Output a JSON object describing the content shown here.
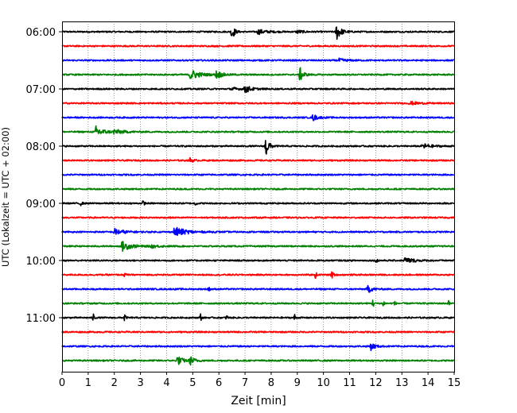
{
  "chart_data": {
    "type": "line",
    "title": "",
    "xlabel": "Zeit  [min]",
    "ylabel": "UTC (Lokalzeit = UTC + 02:00)",
    "xlim": [
      0,
      15
    ],
    "x_ticks": [
      0,
      1,
      2,
      3,
      4,
      5,
      6,
      7,
      8,
      9,
      10,
      11,
      12,
      13,
      14,
      15
    ],
    "x_tick_labels": [
      "0",
      "1",
      "2",
      "3",
      "4",
      "5",
      "6",
      "7",
      "8",
      "9",
      "10",
      "11",
      "12",
      "13",
      "14",
      "15"
    ],
    "y_tick_labels": [
      "06:00",
      "07:00",
      "08:00",
      "09:00",
      "10:00",
      "11:00"
    ],
    "vertical_grid": true,
    "grid_style": "dotted",
    "trace_interval_min": 15,
    "color_cycle": [
      "#000000",
      "#ff0000",
      "#0000ff",
      "#008000"
    ],
    "traces": [
      {
        "start": "06:00",
        "color": "#000000",
        "events": [
          [
            6.5,
            12,
            0.08
          ],
          [
            7.5,
            3,
            0.3
          ],
          [
            9,
            2,
            0.2
          ],
          [
            10.5,
            11,
            0.15
          ]
        ]
      },
      {
        "start": "06:15",
        "color": "#ff0000",
        "events": []
      },
      {
        "start": "06:30",
        "color": "#0000ff",
        "events": [
          [
            10.6,
            2,
            0.25
          ]
        ]
      },
      {
        "start": "06:45",
        "color": "#008000",
        "events": [
          [
            4.9,
            7,
            0.3
          ],
          [
            5.9,
            5,
            0.2
          ],
          [
            9.1,
            9,
            0.12
          ]
        ]
      },
      {
        "start": "07:00",
        "color": "#000000",
        "events": [
          [
            7.0,
            5,
            0.2
          ],
          [
            6.5,
            2,
            0.2
          ]
        ]
      },
      {
        "start": "07:15",
        "color": "#ff0000",
        "events": [
          [
            13.3,
            2,
            0.3
          ]
        ]
      },
      {
        "start": "07:30",
        "color": "#0000ff",
        "events": [
          [
            9.6,
            4,
            0.15
          ]
        ]
      },
      {
        "start": "07:45",
        "color": "#008000",
        "events": [
          [
            1.3,
            7,
            0.25
          ],
          [
            2.0,
            3,
            0.3
          ]
        ]
      },
      {
        "start": "08:00",
        "color": "#000000",
        "events": [
          [
            7.8,
            14,
            0.1
          ],
          [
            13.8,
            3,
            0.3
          ]
        ]
      },
      {
        "start": "08:15",
        "color": "#ff0000",
        "events": [
          [
            4.9,
            3,
            0.1
          ]
        ]
      },
      {
        "start": "08:30",
        "color": "#0000ff",
        "events": []
      },
      {
        "start": "08:45",
        "color": "#008000",
        "events": []
      },
      {
        "start": "09:00",
        "color": "#000000",
        "events": [
          [
            0.7,
            3,
            0.05
          ],
          [
            3.1,
            3,
            0.05
          ],
          [
            5.1,
            2,
            0.05
          ]
        ]
      },
      {
        "start": "09:15",
        "color": "#ff0000",
        "events": []
      },
      {
        "start": "09:30",
        "color": "#0000ff",
        "events": [
          [
            2.0,
            4,
            0.3
          ],
          [
            4.3,
            6,
            0.4
          ]
        ]
      },
      {
        "start": "09:45",
        "color": "#008000",
        "events": [
          [
            2.3,
            6,
            0.3
          ],
          [
            3.4,
            2,
            0.25
          ]
        ]
      },
      {
        "start": "10:00",
        "color": "#000000",
        "events": [
          [
            13.1,
            4,
            0.3
          ],
          [
            12.0,
            2,
            0.1
          ]
        ]
      },
      {
        "start": "10:15",
        "color": "#ff0000",
        "events": [
          [
            9.7,
            5,
            0.03
          ],
          [
            10.3,
            6,
            0.06
          ],
          [
            2.4,
            3,
            0.03
          ]
        ]
      },
      {
        "start": "10:30",
        "color": "#0000ff",
        "events": [
          [
            5.6,
            3,
            0.05
          ],
          [
            11.7,
            5,
            0.15
          ]
        ]
      },
      {
        "start": "10:45",
        "color": "#008000",
        "events": [
          [
            11.9,
            6,
            0.03
          ],
          [
            12.3,
            5,
            0.03
          ],
          [
            12.7,
            5,
            0.03
          ],
          [
            14.8,
            4,
            0.03
          ]
        ]
      },
      {
        "start": "11:00",
        "color": "#000000",
        "events": [
          [
            1.2,
            5,
            0.03
          ],
          [
            2.4,
            6,
            0.03
          ],
          [
            5.3,
            5,
            0.03
          ],
          [
            6.3,
            4,
            0.03
          ],
          [
            8.9,
            4,
            0.03
          ]
        ]
      },
      {
        "start": "11:15",
        "color": "#ff0000",
        "events": []
      },
      {
        "start": "11:30",
        "color": "#0000ff",
        "events": [
          [
            11.8,
            5,
            0.15
          ]
        ]
      },
      {
        "start": "11:45",
        "color": "#008000",
        "events": [
          [
            4.4,
            6,
            0.2
          ],
          [
            4.9,
            5,
            0.15
          ]
        ]
      }
    ]
  }
}
